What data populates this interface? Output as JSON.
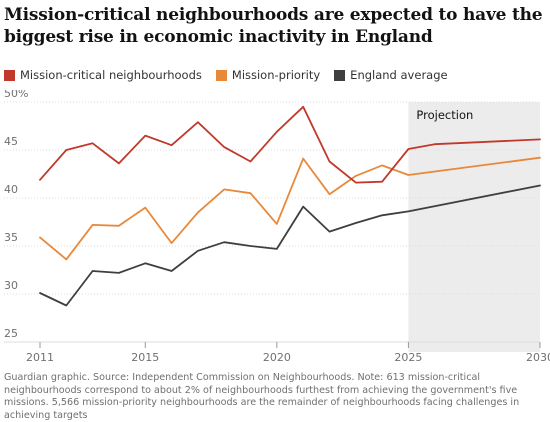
{
  "chart_data": {
    "type": "line",
    "title": "Mission-critical neighbourhoods are expected to have the biggest rise in economic inactivity in England",
    "xlabel": "",
    "ylabel": "",
    "xlim": [
      2011,
      2030
    ],
    "ylim": [
      25,
      50
    ],
    "x_ticks": [
      2011,
      2015,
      2020,
      2025,
      2030
    ],
    "x_tick_labels": [
      "2011",
      "2015",
      "2020",
      "2025",
      "2030"
    ],
    "y_ticks": [
      25,
      30,
      35,
      40,
      45,
      50
    ],
    "y_tick_labels": [
      "25",
      "30",
      "35",
      "40",
      "45",
      "50%"
    ],
    "grid": true,
    "legend_position": "top-left",
    "projection": {
      "label": "Projection",
      "from": 2025,
      "to": 2030
    },
    "series": [
      {
        "name": "Mission-critical neighbourhoods",
        "color": "#c0392b",
        "points": [
          [
            2011,
            41.9
          ],
          [
            2012,
            45.0
          ],
          [
            2013,
            45.7
          ],
          [
            2014,
            43.6
          ],
          [
            2015,
            46.5
          ],
          [
            2016,
            45.5
          ],
          [
            2017,
            47.9
          ],
          [
            2018,
            45.3
          ],
          [
            2019,
            43.8
          ],
          [
            2020,
            46.9
          ],
          [
            2021,
            49.5
          ],
          [
            2022,
            43.8
          ],
          [
            2023,
            41.6
          ],
          [
            2024,
            41.7
          ],
          [
            2025,
            45.1
          ],
          [
            2026,
            45.6
          ],
          [
            2030,
            46.1
          ]
        ]
      },
      {
        "name": "Mission-priority",
        "color": "#e8883a",
        "points": [
          [
            2011,
            35.9
          ],
          [
            2012,
            33.6
          ],
          [
            2013,
            37.2
          ],
          [
            2014,
            37.1
          ],
          [
            2015,
            39.0
          ],
          [
            2016,
            35.3
          ],
          [
            2017,
            38.5
          ],
          [
            2018,
            40.9
          ],
          [
            2019,
            40.5
          ],
          [
            2020,
            37.3
          ],
          [
            2021,
            44.1
          ],
          [
            2022,
            40.4
          ],
          [
            2023,
            42.3
          ],
          [
            2024,
            43.4
          ],
          [
            2025,
            42.4
          ],
          [
            2030,
            44.2
          ]
        ]
      },
      {
        "name": "England average",
        "color": "#3f3f3f",
        "points": [
          [
            2011,
            30.1
          ],
          [
            2012,
            28.8
          ],
          [
            2013,
            32.4
          ],
          [
            2014,
            32.2
          ],
          [
            2015,
            33.2
          ],
          [
            2016,
            32.4
          ],
          [
            2017,
            34.5
          ],
          [
            2018,
            35.4
          ],
          [
            2019,
            35.0
          ],
          [
            2020,
            34.7
          ],
          [
            2021,
            39.1
          ],
          [
            2022,
            36.5
          ],
          [
            2023,
            37.4
          ],
          [
            2024,
            38.2
          ],
          [
            2025,
            38.6
          ],
          [
            2030,
            41.3
          ]
        ]
      }
    ]
  },
  "source_text": "Guardian graphic. Source: Independent Commission on Neighbourhoods. Note: 613 mission-critical neighbourhoods correspond to about 2% of neighbourhoods furthest from achieving the government's five missions. 5,566 mission-priority neighbourhoods are the remainder of neighbourhoods facing challenges in achieving targets"
}
